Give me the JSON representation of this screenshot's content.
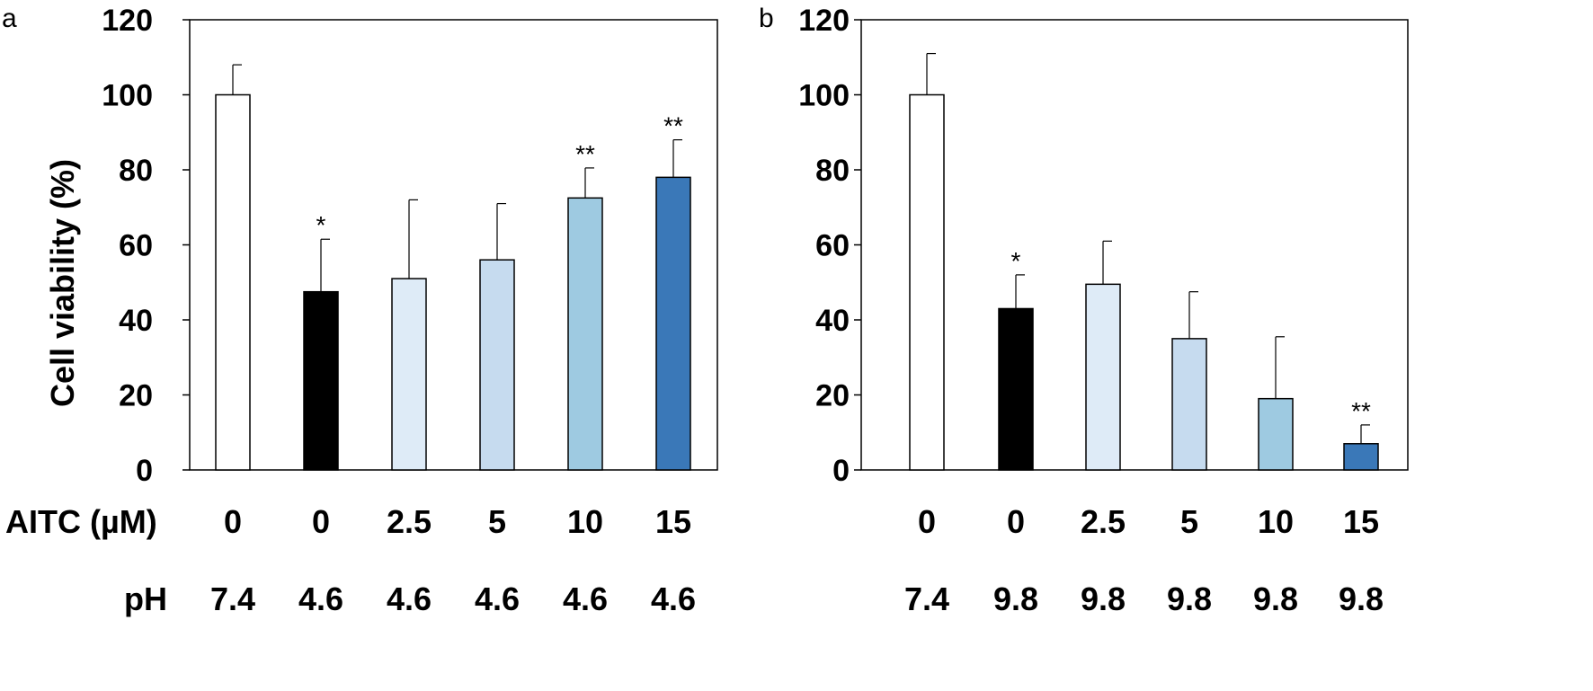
{
  "chart_data": [
    {
      "type": "bar",
      "panel_label": "a",
      "ylabel": "Cell viability (%)",
      "ylim": [
        0,
        120
      ],
      "yticks": [
        0,
        20,
        40,
        60,
        80,
        100,
        120
      ],
      "categories": [
        "0 / 7.4",
        "0 / 4.6",
        "2.5 / 4.6",
        "5 / 4.6",
        "10 / 4.6",
        "15 / 4.6"
      ],
      "row_labels": [
        "AITC (µM)",
        "pH"
      ],
      "aitc": [
        "0",
        "0",
        "2.5",
        "5",
        "10",
        "15"
      ],
      "ph": [
        "7.4",
        "4.6",
        "4.6",
        "4.6",
        "4.6",
        "4.6"
      ],
      "values": [
        100,
        47.5,
        51,
        56,
        72.5,
        78
      ],
      "errors": [
        8,
        14,
        21,
        15,
        8,
        10
      ],
      "significance": [
        "",
        "*",
        "",
        "",
        "**",
        "**"
      ],
      "colors": [
        "#ffffff",
        "#000000",
        "#deebf7",
        "#c6dbef",
        "#9ecae1",
        "#3a78b8"
      ],
      "grid": false
    },
    {
      "type": "bar",
      "panel_label": "b",
      "ylabel": "",
      "ylim": [
        0,
        120
      ],
      "yticks": [
        0,
        20,
        40,
        60,
        80,
        100,
        120
      ],
      "categories": [
        "0 / 7.4",
        "0 / 9.8",
        "2.5 / 9.8",
        "5 / 9.8",
        "10 / 9.8",
        "15 / 9.8"
      ],
      "row_labels": [
        "",
        ""
      ],
      "aitc": [
        "0",
        "0",
        "2.5",
        "5",
        "10",
        "15"
      ],
      "ph": [
        "7.4",
        "9.8",
        "9.8",
        "9.8",
        "9.8",
        "9.8"
      ],
      "values": [
        100,
        43,
        49.5,
        35,
        19,
        7
      ],
      "errors": [
        11,
        9,
        11.5,
        12.5,
        16.5,
        5
      ],
      "significance": [
        "",
        "*",
        "",
        "",
        "",
        "**"
      ],
      "colors": [
        "#ffffff",
        "#000000",
        "#deebf7",
        "#c6dbef",
        "#9ecae1",
        "#3a78b8"
      ],
      "grid": false
    }
  ]
}
